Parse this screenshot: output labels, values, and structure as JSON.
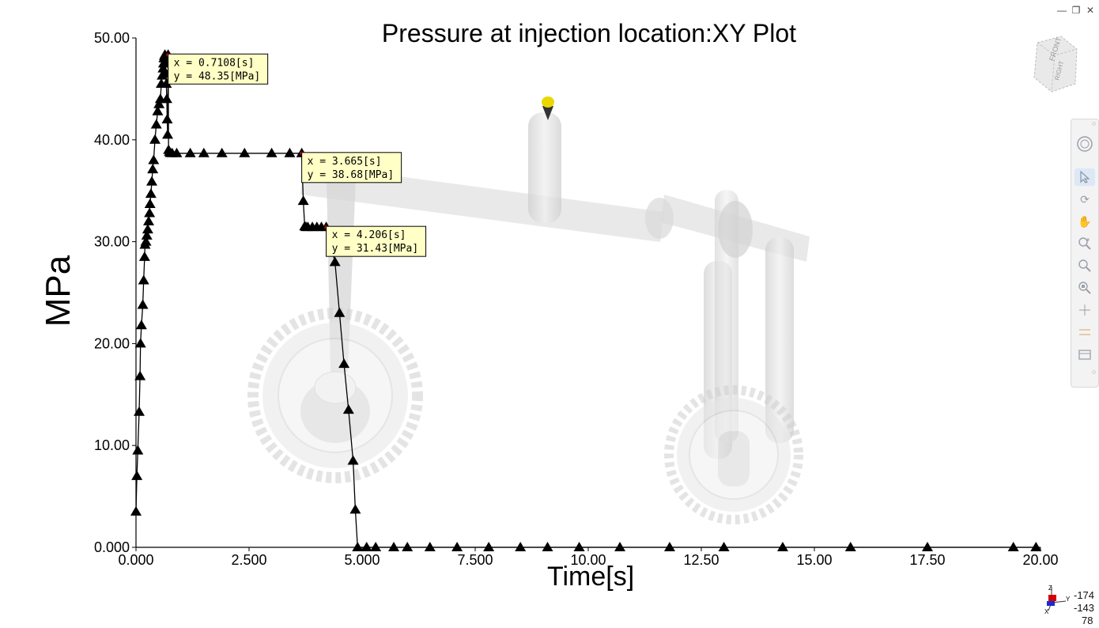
{
  "window": {
    "title": "Pressure at injection location:XY Plot",
    "buttons": [
      "minimize-icon",
      "restore-icon",
      "close-icon"
    ]
  },
  "chart_data": {
    "type": "line",
    "title": "Pressure at injection location:XY Plot",
    "xlabel": "Time[s]",
    "ylabel": "MPa",
    "xlim": [
      0,
      20
    ],
    "ylim": [
      0,
      50
    ],
    "x_ticks": [
      "0.000",
      "2.500",
      "5.000",
      "7.500",
      "10.00",
      "12.50",
      "15.00",
      "17.50",
      "20.00"
    ],
    "y_ticks": [
      "0.000",
      "10.00",
      "20.00",
      "30.00",
      "40.00",
      "50.00"
    ],
    "marker": "triangle",
    "line_color": "#000000",
    "x": [
      0.0,
      0.02,
      0.04,
      0.07,
      0.09,
      0.1,
      0.12,
      0.15,
      0.17,
      0.19,
      0.2,
      0.22,
      0.24,
      0.26,
      0.28,
      0.3,
      0.31,
      0.33,
      0.35,
      0.37,
      0.39,
      0.42,
      0.45,
      0.48,
      0.51,
      0.54,
      0.56,
      0.58,
      0.6,
      0.61,
      0.62,
      0.63,
      0.64,
      0.65,
      0.66,
      0.67,
      0.68,
      0.69,
      0.7,
      0.7108,
      0.72,
      0.74,
      0.76,
      0.8,
      0.9,
      1.2,
      1.5,
      1.9,
      2.4,
      3.0,
      3.4,
      3.665,
      3.7,
      3.73,
      3.76,
      3.8,
      3.9,
      4.0,
      4.1,
      4.206,
      4.4,
      4.5,
      4.6,
      4.7,
      4.8,
      4.85,
      4.9,
      5.1,
      5.3,
      5.7,
      6.0,
      6.5,
      7.1,
      7.8,
      8.5,
      9.1,
      9.8,
      10.7,
      11.8,
      13.0,
      14.3,
      15.8,
      17.5,
      19.4,
      19.9
    ],
    "y": [
      3.5,
      7.0,
      9.5,
      13.3,
      16.8,
      20.0,
      21.8,
      23.8,
      26.2,
      28.5,
      29.7,
      30.0,
      30.6,
      31.2,
      32.0,
      32.8,
      33.7,
      34.7,
      35.9,
      37.1,
      38.0,
      40.0,
      41.5,
      42.8,
      43.5,
      44.0,
      45.5,
      46.3,
      47.0,
      47.5,
      48.0,
      48.2,
      48.35,
      47.5,
      46.5,
      45.5,
      44.0,
      42.0,
      40.5,
      48.35,
      39.0,
      38.8,
      38.7,
      38.68,
      38.68,
      38.68,
      38.68,
      38.68,
      38.68,
      38.68,
      38.68,
      38.68,
      34.0,
      31.5,
      31.43,
      31.43,
      31.43,
      31.43,
      31.43,
      31.43,
      28.0,
      23.0,
      18.0,
      13.5,
      8.5,
      3.7,
      0.0,
      0.0,
      0.0,
      0.0,
      0.0,
      0.0,
      0.0,
      0.0,
      0.0,
      0.0,
      0.0,
      0.0,
      0.0,
      0.0,
      0.0,
      0.0,
      0.0,
      0.0,
      0.0
    ],
    "annotations": [
      {
        "x": 0.7108,
        "y": 48.35,
        "line1": "x = 0.7108[s]",
        "line2": "y = 48.35[MPa]"
      },
      {
        "x": 3.665,
        "y": 38.68,
        "line1": "x = 3.665[s]",
        "line2": "y = 38.68[MPa]"
      },
      {
        "x": 4.206,
        "y": 31.43,
        "line1": "x = 4.206[s]",
        "line2": "y = 31.43[MPa]"
      }
    ],
    "grid": false
  },
  "viewcube": {
    "front": "FRONT",
    "right": "RIGHT"
  },
  "toolbar": {
    "items": [
      "orbit-icon",
      "select-icon",
      "rotate-icon",
      "pan-icon",
      "zoom-in-icon",
      "zoom-window-icon",
      "zoom-fit-icon",
      "section-icon",
      "measure-icon",
      "snapshot-icon"
    ]
  },
  "triad": {
    "z": "Z",
    "y": "Y",
    "x": "X",
    "coords": [
      "-174",
      "-143",
      "78"
    ]
  },
  "colors": {
    "tooltip_bg": "#ffffc6",
    "gate_yellow": "#e8d800",
    "part_gray": "#d9d9d9"
  }
}
